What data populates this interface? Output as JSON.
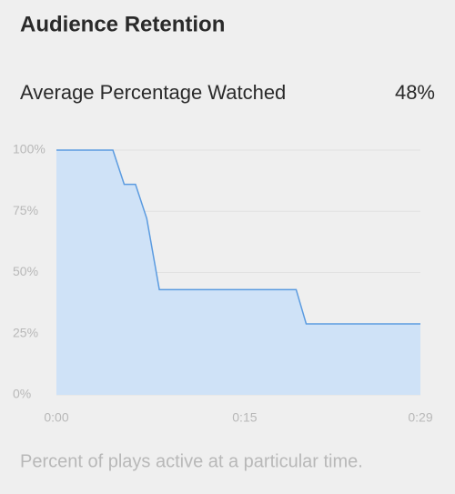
{
  "header": {
    "title": "Audience Retention"
  },
  "metric": {
    "label": "Average Percentage Watched",
    "value": "48%"
  },
  "chart_data": {
    "type": "area",
    "x": [
      0,
      4.5,
      5.4,
      6.3,
      7.2,
      8.2,
      19.1,
      19.9,
      29
    ],
    "values": [
      100,
      100,
      86,
      86,
      72,
      43,
      43,
      29,
      29
    ],
    "color": "#5b9be0",
    "fill": "#cfe2f7",
    "xlim": [
      0,
      29
    ],
    "xticks": [
      {
        "value": 0,
        "label": "0:00"
      },
      {
        "value": 15,
        "label": "0:15"
      },
      {
        "value": 29,
        "label": "0:29"
      }
    ],
    "ylim": [
      0,
      100
    ],
    "yticks": [
      {
        "value": 0,
        "label": "0%"
      },
      {
        "value": 25,
        "label": "25%"
      },
      {
        "value": 50,
        "label": "50%"
      },
      {
        "value": 75,
        "label": "75%"
      },
      {
        "value": 100,
        "label": "100%"
      }
    ],
    "grid": true
  },
  "caption": "Percent of plays active at a particular time."
}
